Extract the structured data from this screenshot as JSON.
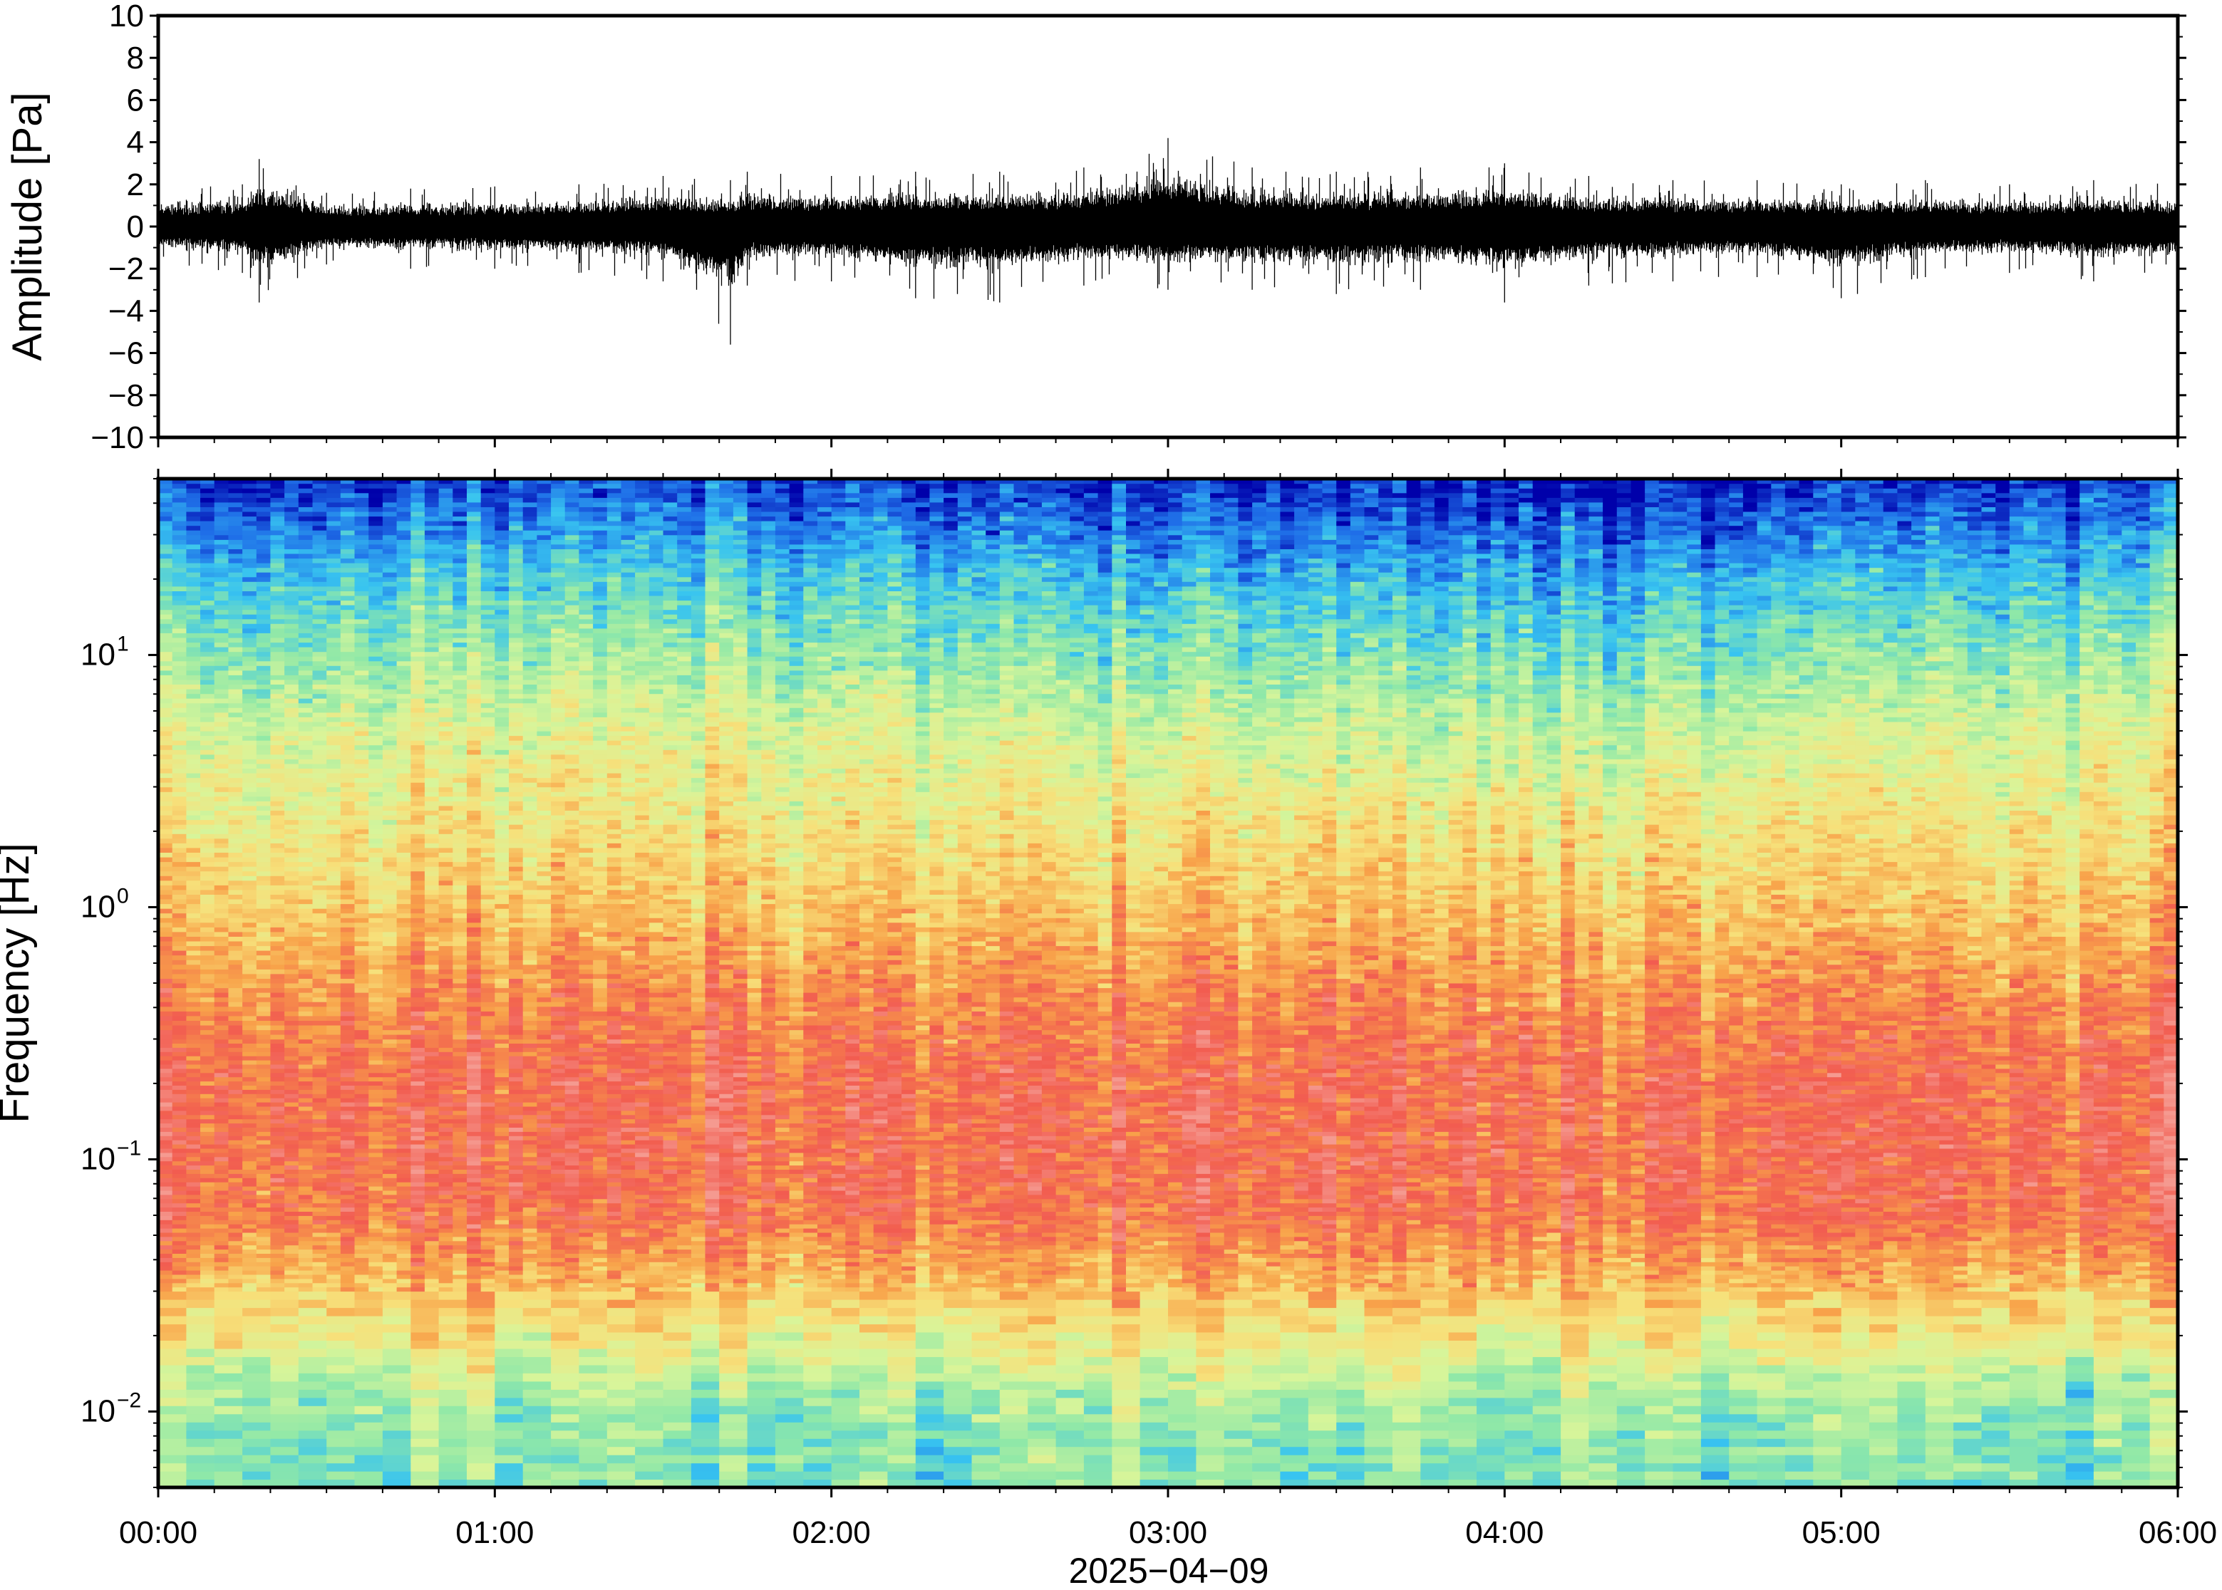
{
  "chart_data": [
    {
      "type": "line",
      "title": "",
      "ylabel": "Amplitude [Pa]",
      "ylim": [
        -10,
        10
      ],
      "yticks": [
        10,
        8,
        6,
        4,
        2,
        0,
        -2,
        -4,
        -6,
        -8,
        -10
      ],
      "ytick_labels": [
        "10",
        "8",
        "6",
        "4",
        "2",
        "0",
        "−2",
        "−4",
        "−6",
        "−8",
        "−10"
      ],
      "xlim_hours": [
        0,
        6
      ],
      "series": [
        {
          "envelope_hours": [
            0,
            0.25,
            0.3,
            0.5,
            0.75,
            1.0,
            1.25,
            1.5,
            1.7,
            1.75,
            2.0,
            2.25,
            2.5,
            2.75,
            3.0,
            3.25,
            3.5,
            3.75,
            4.0,
            4.25,
            4.5,
            4.75,
            5.0,
            5.25,
            5.5,
            5.75,
            6.0
          ],
          "upper": [
            1.8,
            2.0,
            3.2,
            1.6,
            1.8,
            1.9,
            2.0,
            2.4,
            2.2,
            2.6,
            2.4,
            2.6,
            2.6,
            2.8,
            4.2,
            2.8,
            2.6,
            2.8,
            3.0,
            2.4,
            2.2,
            2.2,
            2.0,
            2.2,
            2.0,
            2.2,
            2.0
          ],
          "lower": [
            -1.8,
            -2.2,
            -3.6,
            -1.8,
            -2.0,
            -2.0,
            -2.2,
            -2.6,
            -5.6,
            -2.8,
            -2.6,
            -3.4,
            -3.6,
            -2.8,
            -3.0,
            -3.0,
            -3.2,
            -3.0,
            -3.6,
            -2.8,
            -2.6,
            -2.4,
            -3.4,
            -2.4,
            -2.2,
            -2.6,
            -2.4
          ]
        }
      ]
    },
    {
      "type": "heatmap",
      "title": "",
      "ylabel": "Frequency [Hz]",
      "yscale": "log",
      "ylim": [
        0.005,
        50
      ],
      "yticks": [
        0.01,
        0.1,
        1,
        10
      ],
      "ytick_labels": [
        {
          "base": "10",
          "exp": "−2"
        },
        {
          "base": "10",
          "exp": "−1"
        },
        {
          "base": "10",
          "exp": "0"
        },
        {
          "base": "10",
          "exp": "1"
        }
      ],
      "xlabel": "2025−04−09",
      "xtick_labels": [
        "00:00",
        "01:00",
        "02:00",
        "03:00",
        "04:00",
        "05:00",
        "06:00"
      ],
      "xlim_hours": [
        0,
        6
      ],
      "colormap": "rainbow (blue low, red high)",
      "colormap_stops": [
        "#0000aa",
        "#1f6fe8",
        "#38c4f0",
        "#8fe8a8",
        "#d8f59a",
        "#f7e07a",
        "#f8a34a",
        "#f25c50",
        "#f59a90"
      ],
      "profile_freq_hz": [
        0.005,
        0.0085,
        0.012,
        0.02,
        0.035,
        0.06,
        0.1,
        0.2,
        0.4,
        1.0,
        2.5,
        5.0,
        10,
        20,
        30,
        50
      ],
      "profile_level": [
        0.36,
        0.38,
        0.43,
        0.58,
        0.72,
        0.84,
        0.86,
        0.86,
        0.8,
        0.68,
        0.58,
        0.5,
        0.38,
        0.26,
        0.16,
        0.05
      ]
    }
  ]
}
